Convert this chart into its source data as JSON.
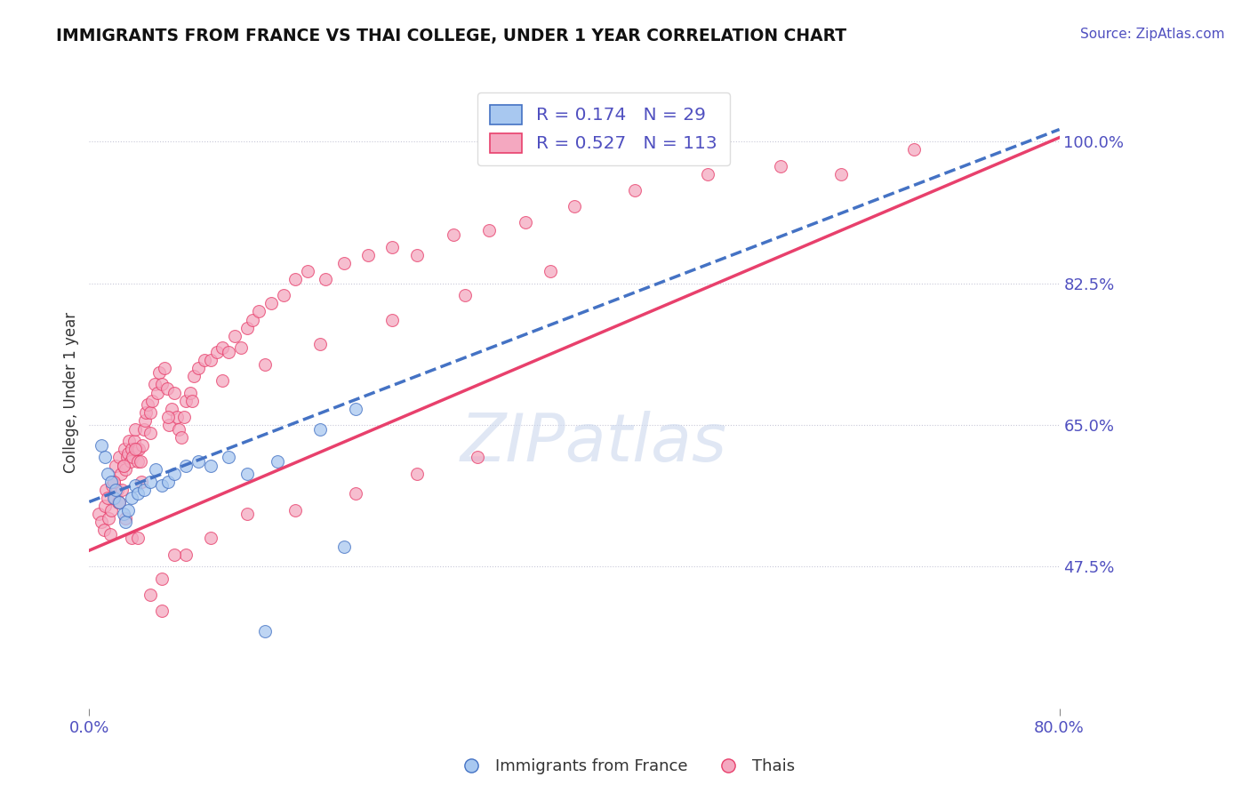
{
  "title": "IMMIGRANTS FROM FRANCE VS THAI COLLEGE, UNDER 1 YEAR CORRELATION CHART",
  "ylabel": "College, Under 1 year",
  "source_text": "Source: ZipAtlas.com",
  "xmin": 0.0,
  "xmax": 0.8,
  "ymin": 0.3,
  "ymax": 1.08,
  "yticks": [
    0.475,
    0.65,
    0.825,
    1.0
  ],
  "ytick_labels": [
    "47.5%",
    "65.0%",
    "82.5%",
    "100.0%"
  ],
  "legend_bottom_labels": [
    "Immigrants from France",
    "Thais"
  ],
  "blue_R": 0.174,
  "blue_N": 29,
  "pink_R": 0.527,
  "pink_N": 113,
  "blue_color": "#A8C8F0",
  "pink_color": "#F4A8C0",
  "blue_line_color": "#4472C4",
  "pink_line_color": "#E8406C",
  "axis_label_color": "#5050C0",
  "blue_line_y0": 0.555,
  "blue_line_y1": 1.015,
  "pink_line_y0": 0.495,
  "pink_line_y1": 1.005,
  "blue_scatter_x": [
    0.01,
    0.013,
    0.015,
    0.018,
    0.02,
    0.022,
    0.025,
    0.028,
    0.03,
    0.032,
    0.035,
    0.038,
    0.04,
    0.045,
    0.05,
    0.055,
    0.06,
    0.065,
    0.07,
    0.08,
    0.09,
    0.1,
    0.115,
    0.13,
    0.155,
    0.19,
    0.22,
    0.145,
    0.21
  ],
  "blue_scatter_y": [
    0.625,
    0.61,
    0.59,
    0.58,
    0.56,
    0.57,
    0.555,
    0.54,
    0.53,
    0.545,
    0.56,
    0.575,
    0.565,
    0.57,
    0.58,
    0.595,
    0.575,
    0.58,
    0.59,
    0.6,
    0.605,
    0.6,
    0.61,
    0.59,
    0.605,
    0.645,
    0.67,
    0.395,
    0.5
  ],
  "pink_scatter_x": [
    0.008,
    0.01,
    0.012,
    0.013,
    0.014,
    0.015,
    0.016,
    0.017,
    0.018,
    0.019,
    0.02,
    0.021,
    0.022,
    0.023,
    0.024,
    0.025,
    0.026,
    0.027,
    0.028,
    0.029,
    0.03,
    0.031,
    0.032,
    0.033,
    0.034,
    0.035,
    0.036,
    0.037,
    0.038,
    0.039,
    0.04,
    0.041,
    0.042,
    0.043,
    0.044,
    0.045,
    0.046,
    0.047,
    0.048,
    0.05,
    0.052,
    0.054,
    0.056,
    0.058,
    0.06,
    0.062,
    0.064,
    0.066,
    0.068,
    0.07,
    0.072,
    0.074,
    0.076,
    0.078,
    0.08,
    0.083,
    0.086,
    0.09,
    0.095,
    0.1,
    0.105,
    0.11,
    0.115,
    0.12,
    0.125,
    0.13,
    0.135,
    0.14,
    0.15,
    0.16,
    0.17,
    0.18,
    0.195,
    0.21,
    0.23,
    0.25,
    0.27,
    0.3,
    0.33,
    0.36,
    0.4,
    0.45,
    0.51,
    0.57,
    0.62,
    0.68,
    0.025,
    0.03,
    0.035,
    0.04,
    0.05,
    0.06,
    0.08,
    0.1,
    0.13,
    0.17,
    0.22,
    0.27,
    0.32,
    0.02,
    0.028,
    0.038,
    0.05,
    0.065,
    0.085,
    0.11,
    0.145,
    0.19,
    0.25,
    0.31,
    0.38,
    0.06,
    0.07
  ],
  "pink_scatter_y": [
    0.54,
    0.53,
    0.52,
    0.55,
    0.57,
    0.56,
    0.535,
    0.515,
    0.545,
    0.575,
    0.58,
    0.56,
    0.6,
    0.57,
    0.555,
    0.61,
    0.59,
    0.57,
    0.6,
    0.62,
    0.595,
    0.61,
    0.615,
    0.63,
    0.605,
    0.62,
    0.61,
    0.63,
    0.645,
    0.62,
    0.605,
    0.62,
    0.605,
    0.58,
    0.625,
    0.645,
    0.655,
    0.665,
    0.675,
    0.665,
    0.68,
    0.7,
    0.69,
    0.715,
    0.7,
    0.72,
    0.695,
    0.65,
    0.67,
    0.69,
    0.66,
    0.645,
    0.635,
    0.66,
    0.68,
    0.69,
    0.71,
    0.72,
    0.73,
    0.73,
    0.74,
    0.745,
    0.74,
    0.76,
    0.745,
    0.77,
    0.78,
    0.79,
    0.8,
    0.81,
    0.83,
    0.84,
    0.83,
    0.85,
    0.86,
    0.87,
    0.86,
    0.885,
    0.89,
    0.9,
    0.92,
    0.94,
    0.96,
    0.97,
    0.96,
    0.99,
    0.555,
    0.535,
    0.51,
    0.51,
    0.44,
    0.46,
    0.49,
    0.51,
    0.54,
    0.545,
    0.565,
    0.59,
    0.61,
    0.58,
    0.6,
    0.62,
    0.64,
    0.66,
    0.68,
    0.705,
    0.725,
    0.75,
    0.78,
    0.81,
    0.84,
    0.42,
    0.49
  ]
}
